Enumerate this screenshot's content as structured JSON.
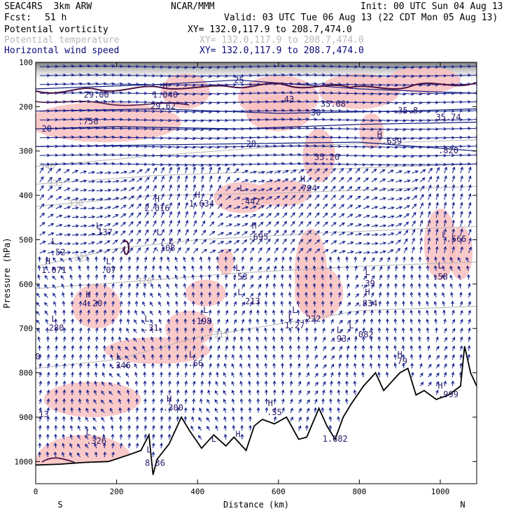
{
  "header": {
    "model": "SEAC4RS  3km ARW",
    "org": "NCAR/MMM",
    "init": "Init: 00 UTC Sun 04 Aug 13",
    "fcst_label": "Fcst:",
    "fcst_value": "51 h",
    "valid": "Valid: 03 UTC Tue 06 Aug 13 (22 CDT Mon 05 Aug 13)",
    "fields": [
      {
        "name": "Potential vorticity",
        "xy": "XY= 132.0,117.9 to 208.7,474.0",
        "color": "#000000"
      },
      {
        "name": "Potential temperature",
        "xy": "XY= 132.0,117.9 to 208.7,474.0",
        "color": "#b8b8b8"
      },
      {
        "name": "Horizontal wind speed",
        "xy": "XY= 132.0,117.9 to 208.7,474.0",
        "color": "#0a0a7a"
      }
    ]
  },
  "chart_data": {
    "type": "cross-section",
    "xlabel": "Distance (km)",
    "ylabel": "Pressure (hPa)",
    "xlim": [
      0,
      1090
    ],
    "ylim": [
      1050,
      100
    ],
    "x_ticks": [
      0,
      200,
      400,
      600,
      800,
      1000
    ],
    "y_ticks": [
      100,
      200,
      300,
      400,
      500,
      600,
      700,
      800,
      900,
      1000
    ],
    "endpoint_labels": {
      "left": "S",
      "right": "N"
    },
    "colors": {
      "wind_arrows": "#0d1a8a",
      "isotachs": "#0d1a7a",
      "isentropes": "#b4b4b4",
      "pv_contour": "#4a1040",
      "pv_shading": "#f9c0c0",
      "terrain": "#000000"
    },
    "terrain": [
      {
        "x": 0,
        "p": 1008
      },
      {
        "x": 60,
        "p": 1006
      },
      {
        "x": 120,
        "p": 1002
      },
      {
        "x": 180,
        "p": 1000
      },
      {
        "x": 230,
        "p": 985
      },
      {
        "x": 260,
        "p": 975
      },
      {
        "x": 280,
        "p": 940
      },
      {
        "x": 290,
        "p": 1030
      },
      {
        "x": 300,
        "p": 995
      },
      {
        "x": 330,
        "p": 960
      },
      {
        "x": 360,
        "p": 900
      },
      {
        "x": 380,
        "p": 930
      },
      {
        "x": 410,
        "p": 970
      },
      {
        "x": 440,
        "p": 940
      },
      {
        "x": 470,
        "p": 965
      },
      {
        "x": 490,
        "p": 945
      },
      {
        "x": 520,
        "p": 975
      },
      {
        "x": 540,
        "p": 920
      },
      {
        "x": 560,
        "p": 905
      },
      {
        "x": 590,
        "p": 915
      },
      {
        "x": 620,
        "p": 900
      },
      {
        "x": 650,
        "p": 950
      },
      {
        "x": 670,
        "p": 945
      },
      {
        "x": 700,
        "p": 880
      },
      {
        "x": 720,
        "p": 920
      },
      {
        "x": 740,
        "p": 950
      },
      {
        "x": 760,
        "p": 900
      },
      {
        "x": 780,
        "p": 870
      },
      {
        "x": 810,
        "p": 830
      },
      {
        "x": 840,
        "p": 800
      },
      {
        "x": 860,
        "p": 840
      },
      {
        "x": 880,
        "p": 820
      },
      {
        "x": 900,
        "p": 800
      },
      {
        "x": 920,
        "p": 790
      },
      {
        "x": 940,
        "p": 850
      },
      {
        "x": 960,
        "p": 840
      },
      {
        "x": 990,
        "p": 860
      },
      {
        "x": 1020,
        "p": 850
      },
      {
        "x": 1050,
        "p": 830
      },
      {
        "x": 1060,
        "p": 740
      },
      {
        "x": 1075,
        "p": 800
      },
      {
        "x": 1090,
        "p": 830
      }
    ],
    "isentropes": [
      {
        "value": "340",
        "points": [
          [
            0,
            335
          ],
          [
            300,
            310
          ],
          [
            600,
            290
          ],
          [
            900,
            280
          ],
          [
            1090,
            275
          ]
        ],
        "label_x": 10
      },
      {
        "value": "335",
        "points": [
          [
            0,
            375
          ],
          [
            300,
            355
          ],
          [
            600,
            345
          ],
          [
            900,
            335
          ],
          [
            1090,
            330
          ]
        ],
        "label_x": 30
      },
      {
        "value": "330",
        "points": [
          [
            0,
            425
          ],
          [
            300,
            400
          ],
          [
            600,
            395
          ],
          [
            900,
            385
          ],
          [
            1090,
            380
          ]
        ],
        "label_x": 80
      },
      {
        "value": "325",
        "points": [
          [
            0,
            560
          ],
          [
            200,
            520
          ],
          [
            400,
            500
          ],
          [
            700,
            485
          ],
          [
            1090,
            470
          ]
        ],
        "label_x": 95
      },
      {
        "value": "320",
        "points": [
          [
            0,
            610
          ],
          [
            300,
            590
          ],
          [
            500,
            575
          ],
          [
            800,
            560
          ],
          [
            1090,
            550
          ]
        ],
        "label_x": 250
      },
      {
        "value": "315",
        "points": [
          [
            0,
            790
          ],
          [
            200,
            770
          ],
          [
            400,
            720
          ],
          [
            600,
            690
          ],
          [
            800,
            660
          ],
          [
            1090,
            650
          ]
        ],
        "label_x": 440
      }
    ],
    "isotachs": [
      {
        "value": "20",
        "points": [
          [
            0,
            250
          ],
          [
            200,
            245
          ],
          [
            500,
            250
          ],
          [
            800,
            240
          ],
          [
            1090,
            235
          ]
        ],
        "label_x": 15
      },
      {
        "value": "25",
        "points": [
          [
            0,
            160
          ],
          [
            300,
            150
          ],
          [
            500,
            140
          ],
          [
            800,
            160
          ],
          [
            1090,
            170
          ]
        ],
        "label_x": 490
      },
      {
        "value": "30",
        "points": [
          [
            0,
            210
          ],
          [
            300,
            205
          ],
          [
            600,
            215
          ],
          [
            900,
            210
          ],
          [
            1090,
            205
          ]
        ],
        "label_x": 680
      },
      {
        "value": "20",
        "points": [
          [
            0,
            290
          ],
          [
            400,
            285
          ],
          [
            800,
            280
          ],
          [
            1090,
            300
          ]
        ],
        "label_x": 520
      }
    ],
    "pv_labels": [
      {
        "text": "H",
        "x": 320,
        "p": 160
      },
      {
        "text": "1.040",
        "x": 320,
        "p": 180
      },
      {
        "text": "29.62",
        "x": 315,
        "p": 205
      },
      {
        "text": "29.00",
        "x": 150,
        "p": 180
      },
      {
        "text": ".756",
        "x": 130,
        "p": 240
      },
      {
        "text": ".43",
        "x": 620,
        "p": 190
      },
      {
        "text": "35.68",
        "x": 735,
        "p": 200
      },
      {
        "text": "35.8",
        "x": 920,
        "p": 215
      },
      {
        "text": "35.74",
        "x": 1020,
        "p": 230
      },
      {
        "text": "H",
        "x": 850,
        "p": 270
      },
      {
        "text": ".659",
        "x": 880,
        "p": 285
      },
      {
        "text": ".820",
        "x": 1020,
        "p": 305
      },
      {
        "text": "35.20",
        "x": 720,
        "p": 320
      },
      {
        "text": "H",
        "x": 660,
        "p": 370
      },
      {
        "text": ".794",
        "x": 670,
        "p": 390
      },
      {
        "text": "L",
        "x": 510,
        "p": 390
      },
      {
        "text": ".442",
        "x": 530,
        "p": 420
      },
      {
        "text": "H",
        "x": 400,
        "p": 405
      },
      {
        "text": "1.634",
        "x": 410,
        "p": 425
      },
      {
        "text": "H",
        "x": 300,
        "p": 415
      },
      {
        "text": "2.016",
        "x": 300,
        "p": 435
      },
      {
        "text": "H",
        "x": 540,
        "p": 475
      },
      {
        "text": ".695",
        "x": 550,
        "p": 500
      },
      {
        "text": "L",
        "x": 155,
        "p": 475
      },
      {
        "text": ".137",
        "x": 165,
        "p": 490
      },
      {
        "text": "L",
        "x": 305,
        "p": 490
      },
      {
        "text": "L",
        "x": 335,
        "p": 510
      },
      {
        "text": ".108",
        "x": 320,
        "p": 525
      },
      {
        "text": "L",
        "x": 45,
        "p": 510
      },
      {
        "text": ".52",
        "x": 55,
        "p": 535
      },
      {
        "text": "H",
        "x": 30,
        "p": 555
      },
      {
        "text": "1.071",
        "x": 45,
        "p": 575
      },
      {
        "text": "L",
        "x": 180,
        "p": 555
      },
      {
        "text": ".07",
        "x": 180,
        "p": 575
      },
      {
        "text": "L",
        "x": 500,
        "p": 570
      },
      {
        "text": ".53",
        "x": 505,
        "p": 590
      },
      {
        "text": "H",
        "x": 130,
        "p": 630
      },
      {
        "text": "4.20",
        "x": 140,
        "p": 650
      },
      {
        "text": "L",
        "x": 505,
        "p": 625
      },
      {
        "text": ".213",
        "x": 530,
        "p": 645
      },
      {
        "text": "L",
        "x": 640,
        "p": 665
      },
      {
        "text": ".222",
        "x": 680,
        "p": 685
      },
      {
        "text": "L",
        "x": 420,
        "p": 665
      },
      {
        "text": ".198",
        "x": 410,
        "p": 690
      },
      {
        "text": "L",
        "x": 275,
        "p": 685
      },
      {
        "text": ".31",
        "x": 285,
        "p": 705
      },
      {
        "text": "L",
        "x": 630,
        "p": 680
      },
      {
        "text": "1.27",
        "x": 640,
        "p": 700
      },
      {
        "text": "L",
        "x": 45,
        "p": 685
      },
      {
        "text": ".280",
        "x": 45,
        "p": 705
      },
      {
        "text": "L",
        "x": 780,
        "p": 700
      },
      {
        "text": ".082",
        "x": 810,
        "p": 720
      },
      {
        "text": "L",
        "x": 750,
        "p": 710
      },
      {
        "text": ".93",
        "x": 750,
        "p": 730
      },
      {
        "text": "H",
        "x": 820,
        "p": 625
      },
      {
        "text": ".834",
        "x": 820,
        "p": 650
      },
      {
        "text": "L",
        "x": 820,
        "p": 580
      },
      {
        "text": ".39",
        "x": 820,
        "p": 605
      },
      {
        "text": "L",
        "x": 1000,
        "p": 565
      },
      {
        "text": ".58",
        "x": 1000,
        "p": 590
      },
      {
        "text": "L",
        "x": 1010,
        "p": 495
      },
      {
        "text": ".565",
        "x": 1040,
        "p": 505
      },
      {
        "text": "L",
        "x": 205,
        "p": 770
      },
      {
        "text": ".346",
        "x": 210,
        "p": 790
      },
      {
        "text": "L",
        "x": 385,
        "p": 765
      },
      {
        "text": ".66",
        "x": 395,
        "p": 785
      },
      {
        "text": "H",
        "x": 330,
        "p": 865
      },
      {
        "text": ".300",
        "x": 340,
        "p": 885
      },
      {
        "text": "H",
        "x": 580,
        "p": 875
      },
      {
        "text": ".55",
        "x": 590,
        "p": 895
      },
      {
        "text": "H",
        "x": 900,
        "p": 765
      },
      {
        "text": ".79",
        "x": 900,
        "p": 780
      },
      {
        "text": "H",
        "x": 1000,
        "p": 835
      },
      {
        "text": ".999",
        "x": 1020,
        "p": 855
      },
      {
        "text": "L",
        "x": 130,
        "p": 940
      },
      {
        "text": ".326",
        "x": 150,
        "p": 960
      },
      {
        "text": "8.36",
        "x": 295,
        "p": 1010
      },
      {
        "text": "L",
        "x": 440,
        "p": 955
      },
      {
        "text": "H",
        "x": 500,
        "p": 945
      },
      {
        "text": "1.682",
        "x": 740,
        "p": 955
      },
      {
        "text": "L",
        "x": 280,
        "p": 980
      },
      {
        "text": "13",
        "x": 20,
        "p": 900
      },
      {
        "text": "0",
        "x": 5,
        "p": 770
      }
    ]
  }
}
